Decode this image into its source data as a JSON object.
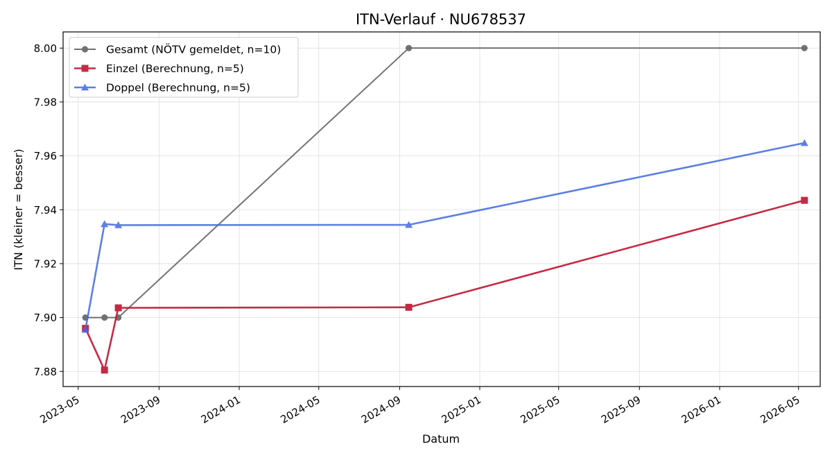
{
  "chart_data": {
    "type": "line",
    "title": "ITN-Verlauf · NU678537",
    "xlabel": "Datum",
    "ylabel": "ITN  (kleiner = besser)",
    "x_range": [
      "2023-04-08",
      "2026-06-03"
    ],
    "ylim": [
      7.8744,
      8.006
    ],
    "x_ticks": [
      "2023-05",
      "2023-09",
      "2024-01",
      "2024-05",
      "2024-09",
      "2025-01",
      "2025-05",
      "2025-09",
      "2026-01",
      "2026-05"
    ],
    "y_ticks": [
      "7.88",
      "7.90",
      "7.92",
      "7.94",
      "7.96",
      "7.98",
      "8.00"
    ],
    "grid": true,
    "legend_position": "top-left",
    "series": [
      {
        "name": "Gesamt (NÖTV gemeldet, n=10)",
        "color": "#444444",
        "marker": "circle",
        "points": [
          {
            "x": "2023-05-12",
            "y": 7.9
          },
          {
            "x": "2023-06-10",
            "y": 7.9
          },
          {
            "x": "2023-07-01",
            "y": 7.9
          },
          {
            "x": "2024-09-15",
            "y": 8.0
          },
          {
            "x": "2026-05-10",
            "y": 8.0
          }
        ]
      },
      {
        "name": "Einzel (Berechnung, n=5)",
        "color": "#c41e3a",
        "marker": "square",
        "points": [
          {
            "x": "2023-05-12",
            "y": 7.896
          },
          {
            "x": "2023-06-10",
            "y": 7.8805
          },
          {
            "x": "2023-07-01",
            "y": 7.9036
          },
          {
            "x": "2024-09-15",
            "y": 7.9038
          },
          {
            "x": "2026-05-10",
            "y": 7.9435
          }
        ]
      },
      {
        "name": "Doppel (Berechnung, n=5)",
        "color": "#4169e1",
        "marker": "triangle",
        "points": [
          {
            "x": "2023-05-12",
            "y": 7.8955
          },
          {
            "x": "2023-06-10",
            "y": 7.9347
          },
          {
            "x": "2023-07-01",
            "y": 7.9343
          },
          {
            "x": "2024-09-15",
            "y": 7.9344
          },
          {
            "x": "2026-05-10",
            "y": 7.9648
          }
        ]
      }
    ]
  }
}
